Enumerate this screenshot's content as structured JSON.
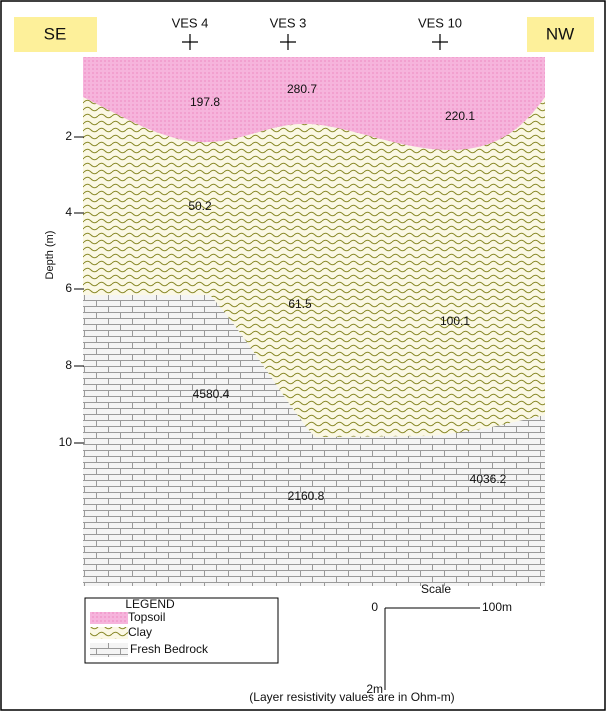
{
  "header": {
    "left": "SE",
    "right": "NW"
  },
  "soundings": [
    "VES 4",
    "VES 3",
    "VES 10"
  ],
  "y_axis": {
    "label": "Depth (m)",
    "ticks": [
      "2",
      "4",
      "6",
      "8",
      "10"
    ]
  },
  "resistivities": [
    "197.8",
    "280.7",
    "220.1",
    "50.2",
    "61.5",
    "100.1",
    "4580.4",
    "4036.2",
    "2160.8"
  ],
  "legend": {
    "title": "LEGEND",
    "items": [
      "Topsoil",
      "Clay",
      "Fresh Bedrock"
    ]
  },
  "scale": {
    "title": "Scale",
    "zero": "0",
    "horizontal": "100m",
    "vertical": "2m"
  },
  "note": "(Layer resistivity values are in Ohm-m)"
}
